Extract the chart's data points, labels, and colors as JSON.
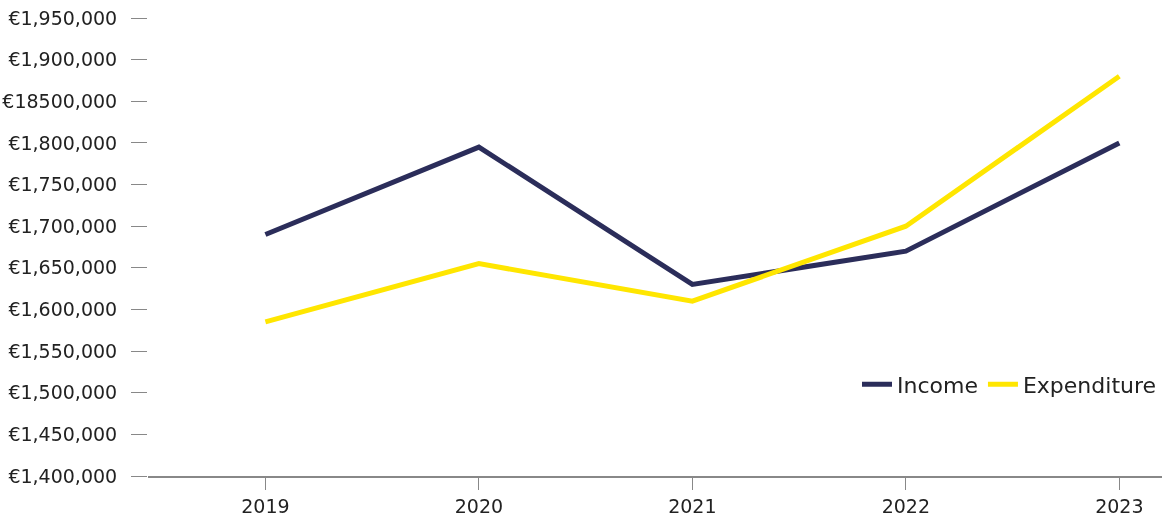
{
  "chart_data": {
    "type": "line",
    "categories": [
      "2019",
      "2020",
      "2021",
      "2022",
      "2023"
    ],
    "series": [
      {
        "name": "Income",
        "color": "#2b2d5a",
        "values": [
          1690000,
          1795000,
          1630000,
          1670000,
          1800000
        ]
      },
      {
        "name": "Expenditure",
        "color": "#ffe600",
        "values": [
          1585000,
          1655000,
          1610000,
          1700000,
          1880000
        ]
      }
    ],
    "ylim": [
      1400000,
      1950000
    ],
    "yticks": [
      {
        "value": 1400000,
        "label": "€1,400,000"
      },
      {
        "value": 1450000,
        "label": "€1,450,000"
      },
      {
        "value": 1500000,
        "label": "€1,500,000"
      },
      {
        "value": 1550000,
        "label": "€1,550,000"
      },
      {
        "value": 1600000,
        "label": "€1,600,000"
      },
      {
        "value": 1650000,
        "label": "€1,650,000"
      },
      {
        "value": 1700000,
        "label": "€1,700,000"
      },
      {
        "value": 1750000,
        "label": "€1,750,000"
      },
      {
        "value": 1800000,
        "label": "€1,800,000"
      },
      {
        "value": 1850000,
        "label": "€18500,000"
      },
      {
        "value": 1900000,
        "label": "€1,900,000"
      },
      {
        "value": 1950000,
        "label": "€1,950,000"
      }
    ],
    "grid": false,
    "legend": "bottom right",
    "marker": "none",
    "line_style": "solid"
  }
}
